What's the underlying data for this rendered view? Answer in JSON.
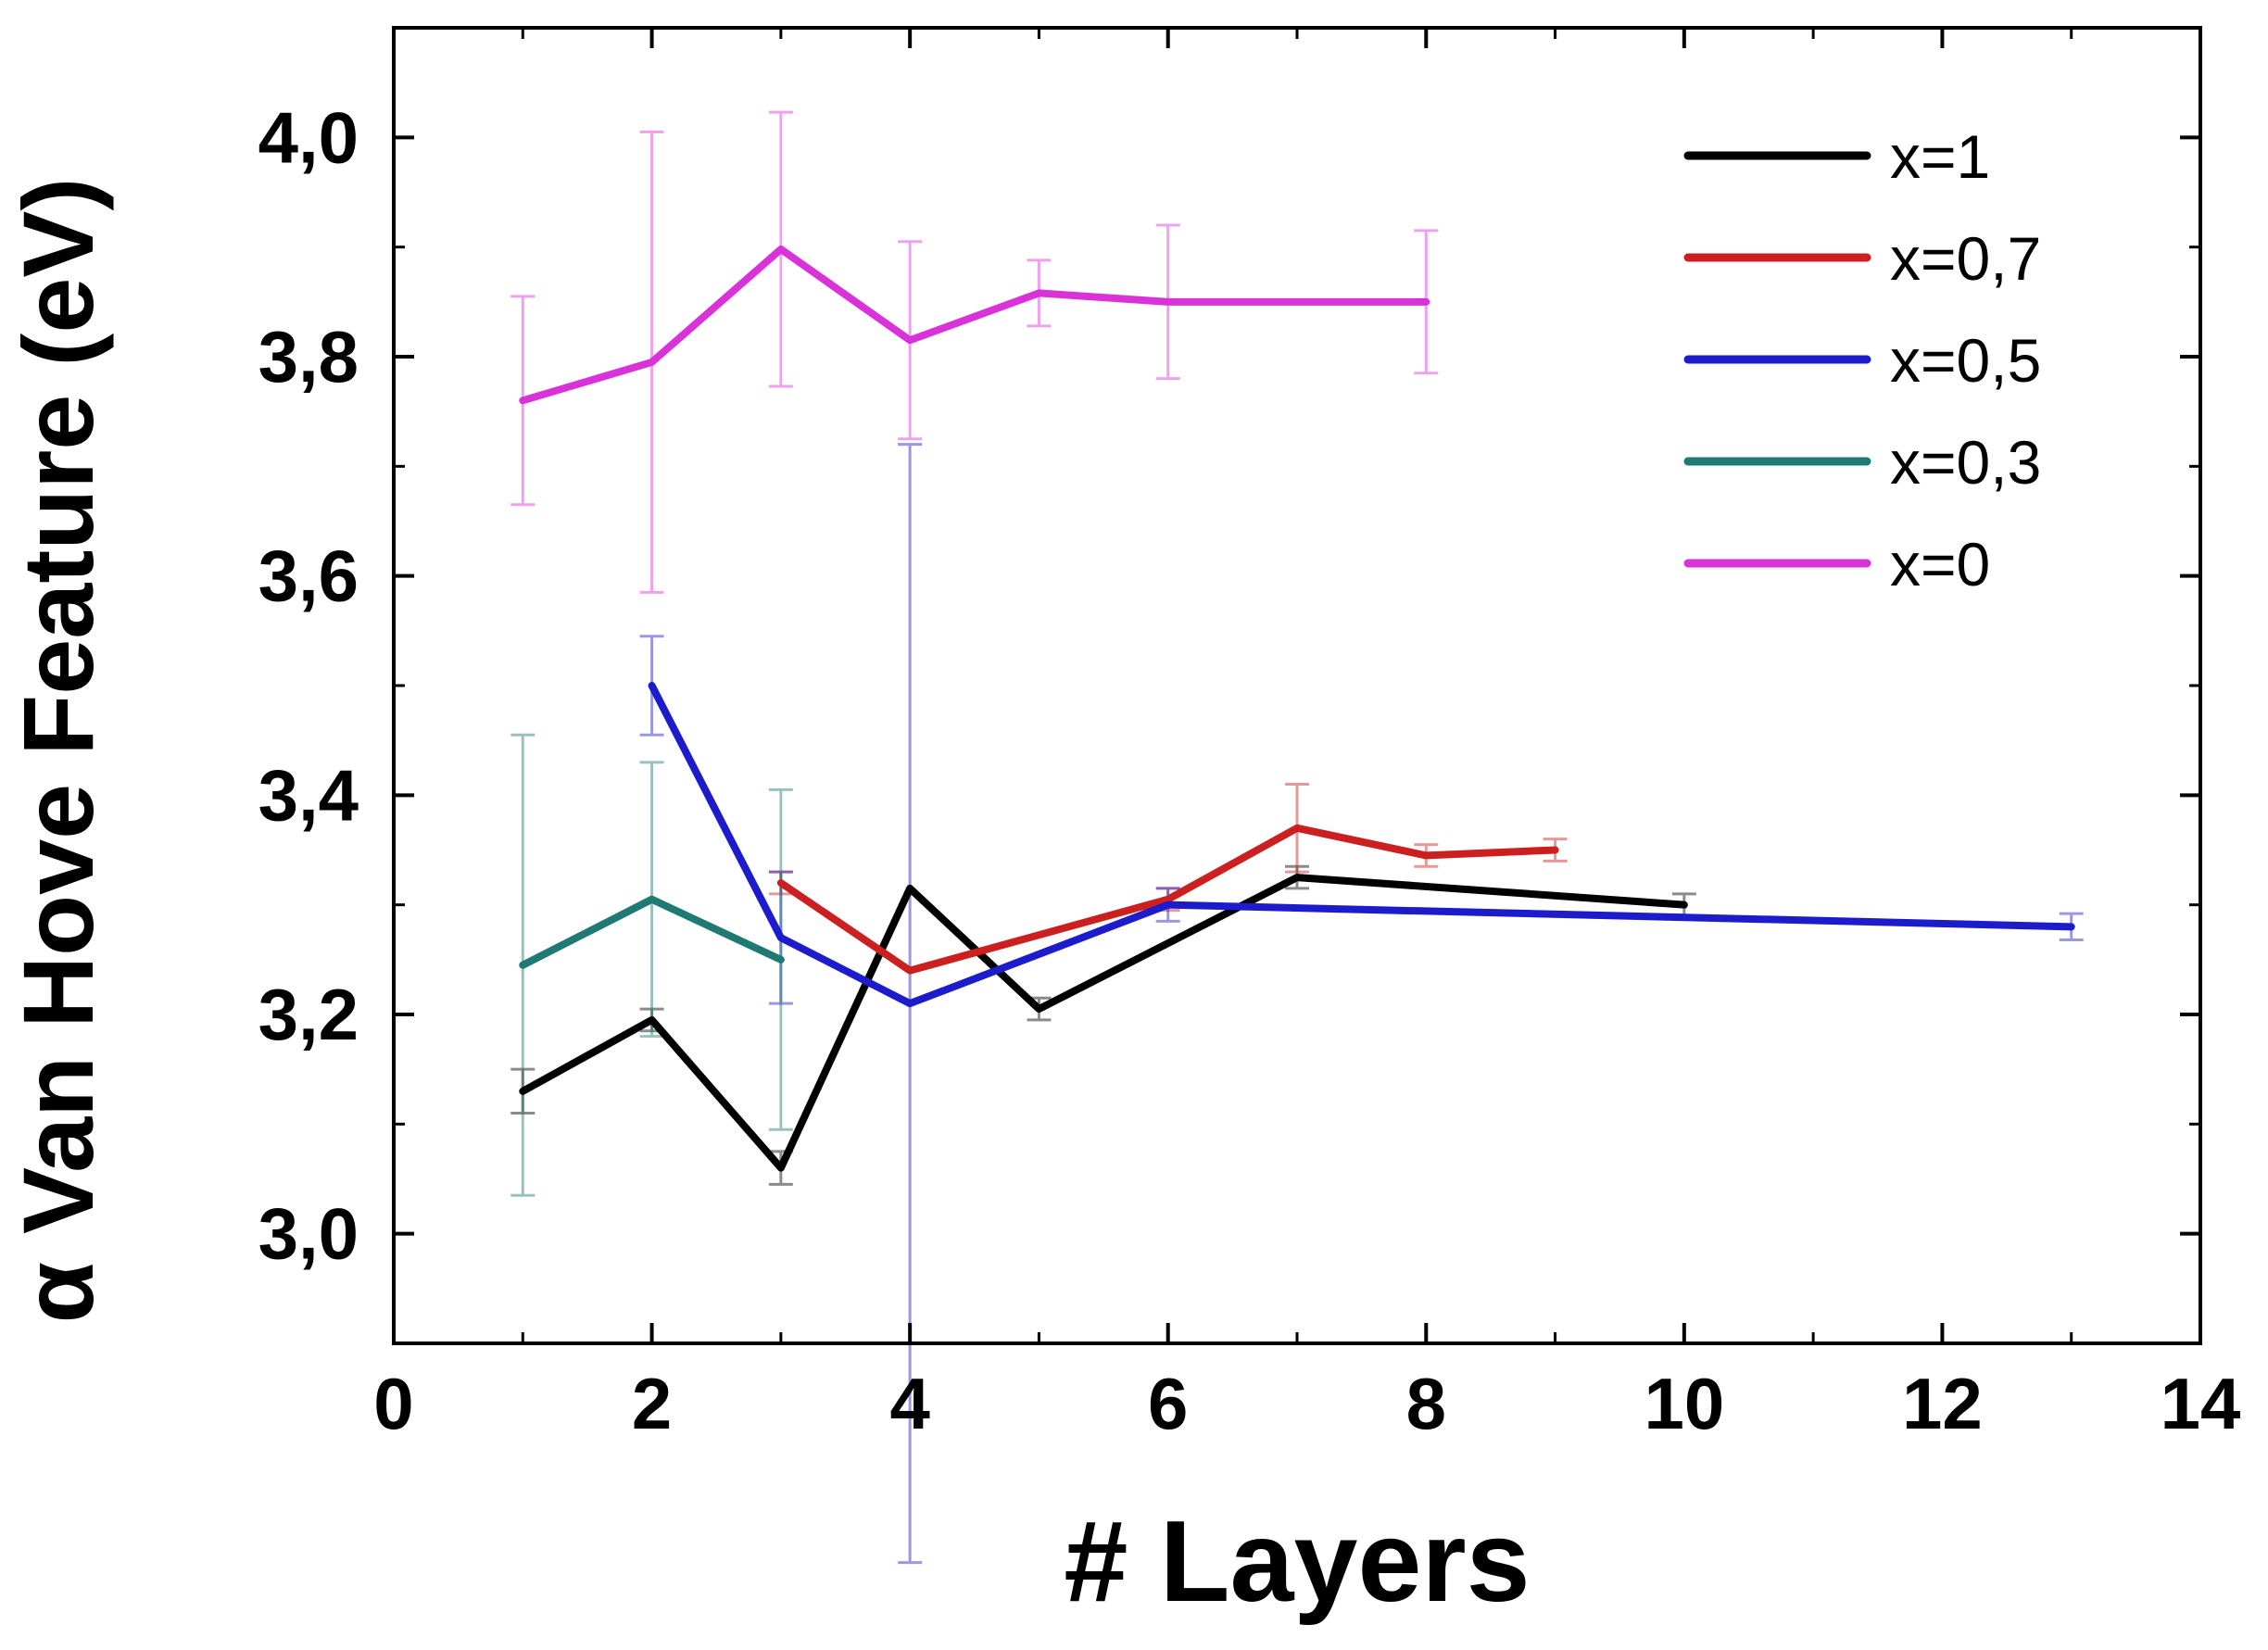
{
  "chart_data": {
    "type": "line",
    "xlabel": "# Layers",
    "ylabel": "α Van Hove Feature (eV)",
    "xlim": [
      0,
      14
    ],
    "ylim": [
      2.9,
      4.1
    ],
    "xticks": [
      0,
      2,
      4,
      6,
      8,
      10,
      12,
      14
    ],
    "xtick_labels": [
      "0",
      "2",
      "4",
      "6",
      "8",
      "10",
      "12",
      "14"
    ],
    "yticks": [
      3.0,
      3.2,
      3.4,
      3.6,
      3.8,
      4.0
    ],
    "ytick_labels": [
      "3,0",
      "3,2",
      "3,4",
      "3,6",
      "3,8",
      "4,0"
    ],
    "grid": false,
    "legend_position": "top-right",
    "series": [
      {
        "name": "x=1",
        "color": "#000000",
        "x": [
          1,
          2,
          3,
          4,
          5,
          7,
          10
        ],
        "y": [
          3.13,
          3.195,
          3.06,
          3.315,
          3.205,
          3.325,
          3.3
        ],
        "err": [
          0.02,
          0.01,
          0.015,
          0.0,
          0.01,
          0.01,
          0.01
        ]
      },
      {
        "name": "x=0,7",
        "color": "#cc1f1f",
        "x": [
          3,
          4,
          6,
          7,
          8,
          9
        ],
        "y": [
          3.32,
          3.24,
          3.305,
          3.37,
          3.345,
          3.35
        ],
        "err": [
          0.01,
          0.0,
          0.01,
          0.04,
          0.01,
          0.01
        ]
      },
      {
        "name": "x=0,5",
        "color": "#1c1ccc",
        "x": [
          2,
          3,
          4,
          6,
          13
        ],
        "y": [
          3.5,
          3.27,
          3.21,
          3.3,
          3.28
        ],
        "err": [
          0.045,
          0.06,
          0.51,
          0.015,
          0.012
        ]
      },
      {
        "name": "x=0,3",
        "color": "#1f7a73",
        "x": [
          1,
          2,
          3
        ],
        "y": [
          3.245,
          3.305,
          3.25
        ],
        "err": [
          0.21,
          0.125,
          0.155
        ]
      },
      {
        "name": "x=0",
        "color": "#d932d9",
        "x": [
          1,
          2,
          3,
          4,
          5,
          6,
          8
        ],
        "y": [
          3.76,
          3.795,
          3.898,
          3.815,
          3.858,
          3.85,
          3.85
        ],
        "err": [
          0.095,
          0.21,
          0.125,
          0.09,
          0.03,
          0.07,
          0.065
        ]
      }
    ]
  }
}
